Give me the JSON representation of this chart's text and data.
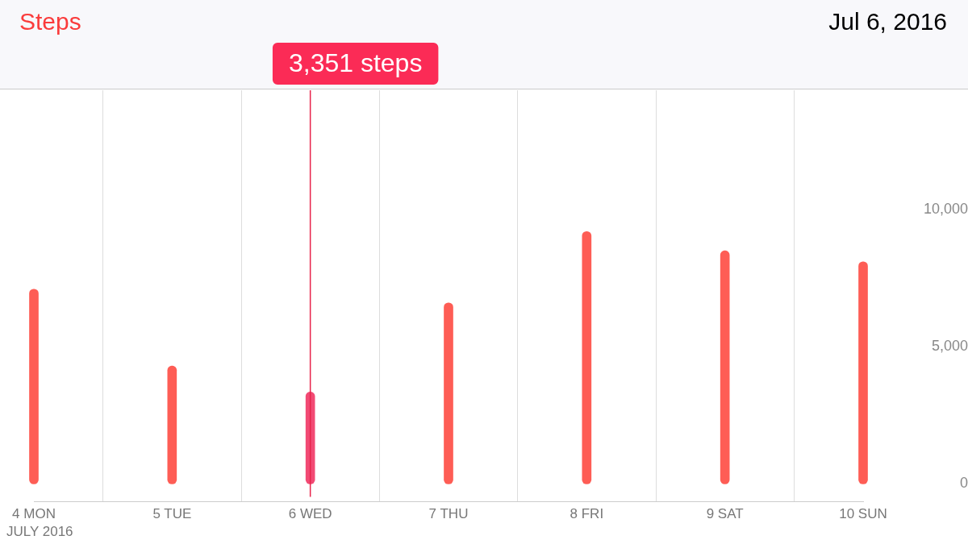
{
  "chart_data": {
    "type": "bar",
    "title": "Steps",
    "subtitle": "Jul 6, 2016",
    "xlabel": "JULY 2016",
    "categories": [
      "4 MON",
      "5 TUE",
      "6 WED",
      "7 THU",
      "8 FRI",
      "9 SAT",
      "10 SUN"
    ],
    "values": [
      7100,
      4300,
      3351,
      6600,
      9200,
      8500,
      8100
    ],
    "colors": [
      "#fe5d55",
      "#fe5d55",
      "#f24a74",
      "#fe5d55",
      "#fe5d55",
      "#fe5d55",
      "#fe5d55"
    ],
    "ylim": [
      -650,
      14350
    ],
    "yticks": [
      0,
      {
        "value": 5000,
        "label": "5,000"
      },
      {
        "value": 10000,
        "label": "10,000"
      }
    ],
    "grid": "x",
    "ref_lines": [
      {
        "axis": "x",
        "value": "6 WED",
        "color": "#e8234b"
      }
    ],
    "annotations": [
      "3,351 steps"
    ]
  }
}
